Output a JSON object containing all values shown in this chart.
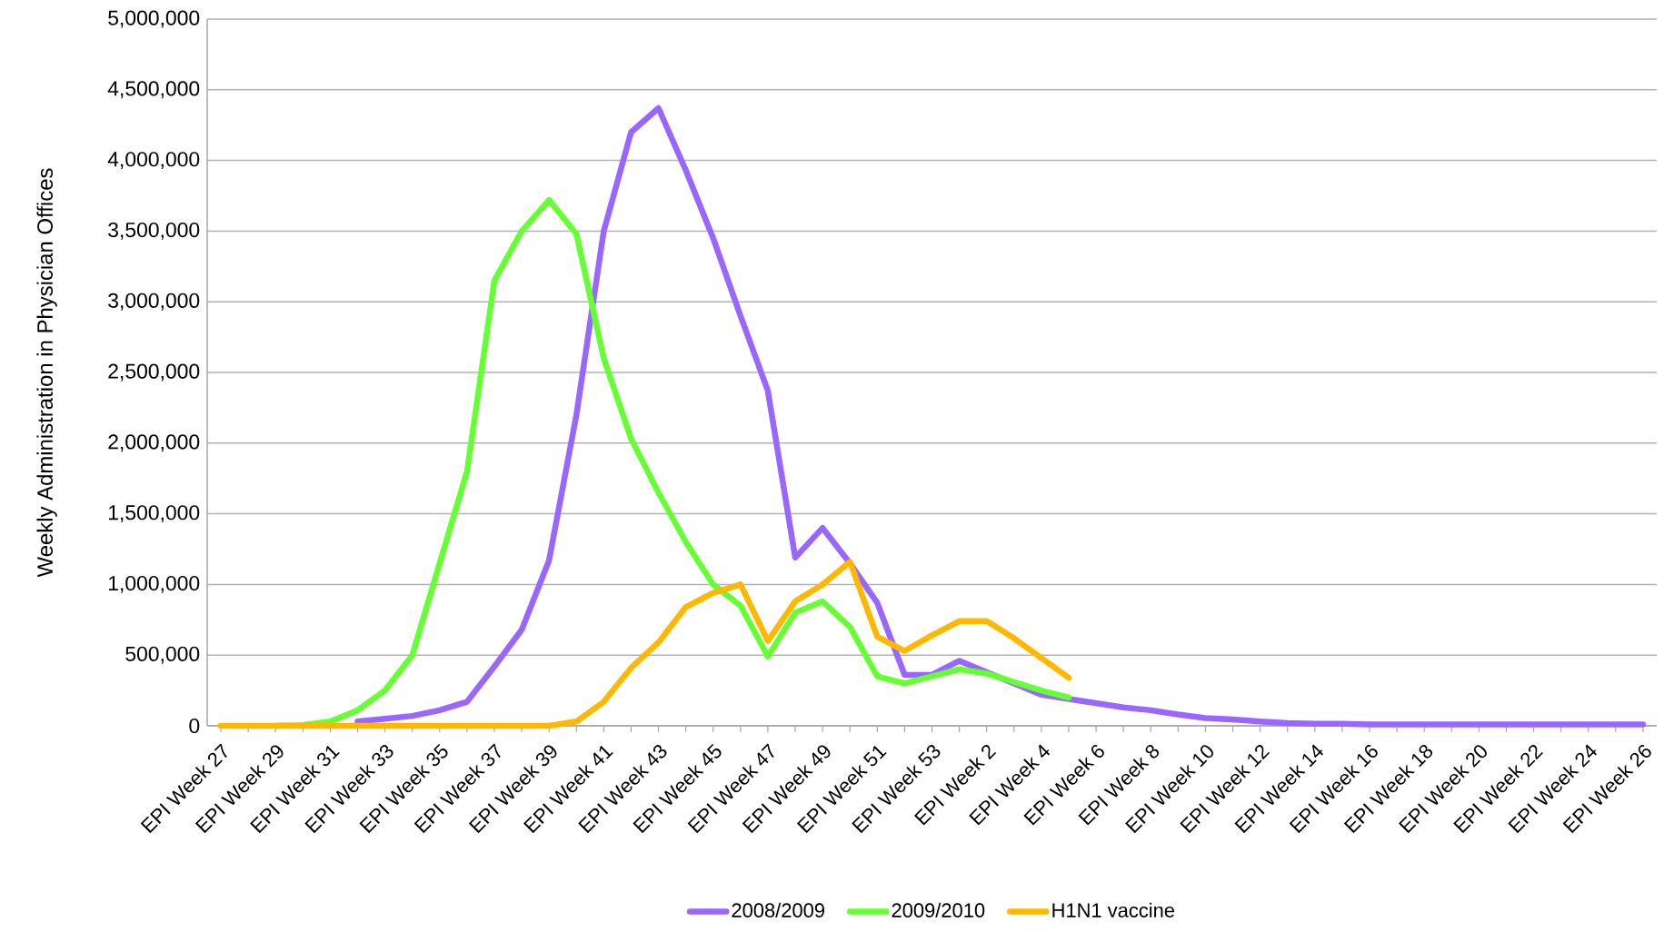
{
  "chart_data": {
    "type": "line",
    "ylabel": "Weekly Administration in Physician Offices",
    "categories": [
      "EPI Week 27",
      null,
      "EPI Week 29",
      null,
      "EPI Week 31",
      null,
      "EPI Week 33",
      null,
      "EPI Week 35",
      null,
      "EPI Week 37",
      null,
      "EPI Week 39",
      null,
      "EPI Week 41",
      null,
      "EPI Week 43",
      null,
      "EPI Week 45",
      null,
      "EPI Week 47",
      null,
      "EPI Week 49",
      null,
      "EPI Week 51",
      null,
      "EPI Week 53",
      null,
      "EPI Week 2",
      null,
      "EPI Week 4",
      null,
      "EPI Week 6",
      null,
      "EPI Week 8",
      null,
      "EPI Week 10",
      null,
      "EPI Week 12",
      null,
      "EPI Week 14",
      null,
      "EPI Week 16",
      null,
      "EPI Week 18",
      null,
      "EPI Week 20",
      null,
      "EPI Week 22",
      null,
      "EPI Week 24",
      null,
      "EPI Week 26"
    ],
    "series": [
      {
        "name": "2008/2009",
        "color": "#9966ff",
        "values": [
          null,
          null,
          null,
          null,
          null,
          30000,
          50000,
          70000,
          110000,
          170000,
          420000,
          680000,
          1170000,
          2200000,
          3500000,
          4200000,
          4370000,
          3930000,
          3450000,
          2900000,
          2370000,
          1190000,
          1400000,
          1150000,
          870000,
          360000,
          360000,
          460000,
          380000,
          300000,
          220000,
          190000,
          160000,
          130000,
          110000,
          80000,
          55000,
          45000,
          30000,
          20000,
          15000,
          15000,
          10000,
          10000,
          10000,
          10000,
          10000,
          10000,
          10000,
          10000,
          10000,
          10000,
          10000
        ]
      },
      {
        "name": "2009/2010",
        "color": "#66ff33",
        "values": [
          null,
          null,
          0,
          5000,
          30000,
          110000,
          250000,
          500000,
          1150000,
          1800000,
          3150000,
          3500000,
          3720000,
          3480000,
          2600000,
          2030000,
          1650000,
          1300000,
          1000000,
          850000,
          490000,
          800000,
          880000,
          700000,
          350000,
          300000,
          350000,
          400000,
          370000,
          310000,
          250000,
          200000,
          null,
          null,
          null,
          null,
          null,
          null,
          null,
          null,
          null,
          null,
          null,
          null,
          null,
          null,
          null,
          null,
          null,
          null,
          null,
          null,
          null
        ]
      },
      {
        "name": "H1N1 vaccine",
        "color": "#ffb800",
        "values": [
          0,
          0,
          0,
          0,
          0,
          0,
          0,
          0,
          0,
          0,
          0,
          0,
          0,
          30000,
          170000,
          410000,
          590000,
          840000,
          940000,
          1000000,
          600000,
          880000,
          1000000,
          1160000,
          630000,
          530000,
          640000,
          740000,
          740000,
          620000,
          480000,
          340000,
          null,
          null,
          null,
          null,
          null,
          null,
          null,
          null,
          null,
          null,
          null,
          null,
          null,
          null,
          null,
          null,
          null,
          null,
          null,
          null,
          null
        ]
      }
    ],
    "ylim": [
      0,
      5000000
    ],
    "yticks": [
      {
        "value": 0,
        "label": "0"
      },
      {
        "value": 500000,
        "label": "500,000"
      },
      {
        "value": 1000000,
        "label": "1,000,000"
      },
      {
        "value": 1500000,
        "label": "1,500,000"
      },
      {
        "value": 2000000,
        "label": "2,000,000"
      },
      {
        "value": 2500000,
        "label": "2,500,000"
      },
      {
        "value": 3000000,
        "label": "3,000,000"
      },
      {
        "value": 3500000,
        "label": "3,500,000"
      },
      {
        "value": 4000000,
        "label": "4,000,000"
      },
      {
        "value": 4500000,
        "label": "4,500,000"
      },
      {
        "value": 5000000,
        "label": "5,000,000"
      }
    ],
    "grid": "y",
    "legend": "bottom",
    "marker": "none",
    "line_style": "solid"
  }
}
